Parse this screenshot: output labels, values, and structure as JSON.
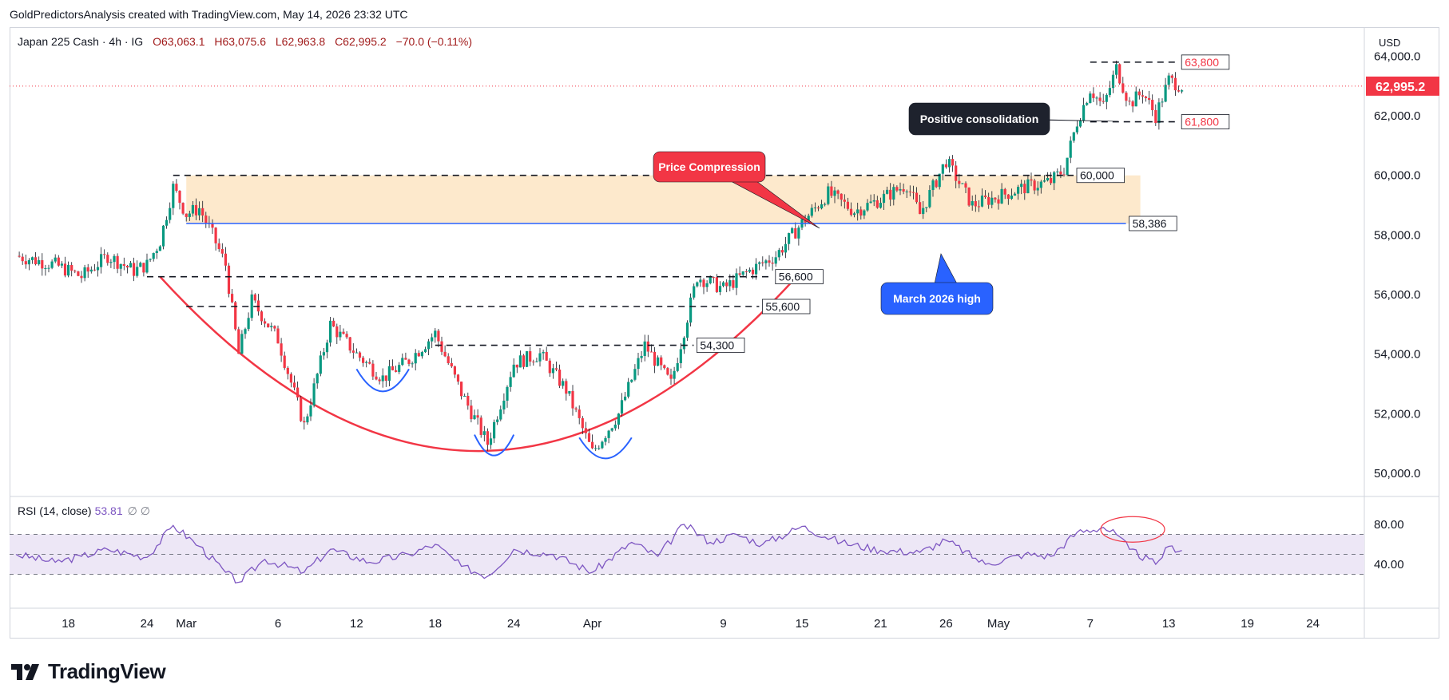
{
  "header": {
    "caption": "GoldPredictorsAnalysis created with TradingView.com, May 14, 2026 23:32 UTC"
  },
  "legend": {
    "symbol": "Japan 225 Cash · 4h · IG",
    "open": "O63,063.1",
    "high": "H63,075.6",
    "low": "L62,963.8",
    "close": "C62,995.2",
    "change": "−70.0 (−0.11%)"
  },
  "price_axis": {
    "currency": "USD",
    "current_price_label": "62,995.2"
  },
  "rsi_legend": {
    "label": "RSI (14, close)",
    "value": "53.81",
    "symbols": "∅  ∅"
  },
  "brand": {
    "name": "TradingView"
  },
  "colors": {
    "up": "#089981",
    "down": "#f23645",
    "zone": "#fde9cc",
    "support_line": "#2962ff",
    "cup_curve": "#f23645",
    "rsi_line": "#7e57c2",
    "rsi_band": "#ede7f6",
    "price_tag": "#f23645",
    "callout_red": "#f23645",
    "callout_blue": "#2962ff",
    "callout_dark": "#1e222d"
  },
  "chart_data": {
    "type": "candlestick",
    "title": "Japan 225 Cash · 4h · IG",
    "price_axis": {
      "ticks": [
        50000,
        52000,
        54000,
        56000,
        58000,
        60000,
        62000,
        64000
      ],
      "labels": [
        "50,000.0",
        "52,000.0",
        "54,000.0",
        "56,000.0",
        "58,000.0",
        "60,000.0",
        "62,000.0",
        "64,000.0"
      ],
      "range": [
        49600,
        64600
      ]
    },
    "time_axis": {
      "labels": [
        "18",
        "24",
        "Mar",
        "6",
        "12",
        "18",
        "24",
        "Apr",
        "9",
        "15",
        "21",
        "26",
        "May",
        "7",
        "13",
        "19",
        "24"
      ]
    },
    "price_path": [
      {
        "t": "Feb 14",
        "close": 57300
      },
      {
        "t": "Feb 17",
        "close": 57000
      },
      {
        "t": "Feb 19",
        "close": 56600
      },
      {
        "t": "Feb 21",
        "close": 57300
      },
      {
        "t": "Feb 23",
        "close": 56800
      },
      {
        "t": "Feb 24",
        "close": 57000
      },
      {
        "t": "Feb 25",
        "close": 57800
      },
      {
        "t": "Feb 26",
        "close": 59600
      },
      {
        "t": "Feb 27",
        "close": 58700
      },
      {
        "t": "Feb 28",
        "close": 58900
      },
      {
        "t": "Mar 1",
        "close": 58000
      },
      {
        "t": "Mar 2",
        "close": 57000
      },
      {
        "t": "Mar 3",
        "close": 54000
      },
      {
        "t": "Mar 4",
        "close": 55800
      },
      {
        "t": "Mar 6",
        "close": 54500
      },
      {
        "t": "Mar 8",
        "close": 51600
      },
      {
        "t": "Mar 10",
        "close": 55000
      },
      {
        "t": "Mar 12",
        "close": 54000
      },
      {
        "t": "Mar 14",
        "close": 53200
      },
      {
        "t": "Mar 16",
        "close": 53800
      },
      {
        "t": "Mar 18",
        "close": 54700
      },
      {
        "t": "Mar 20",
        "close": 52700
      },
      {
        "t": "Mar 22",
        "close": 51000
      },
      {
        "t": "Mar 24",
        "close": 53700
      },
      {
        "t": "Mar 26",
        "close": 54000
      },
      {
        "t": "Mar 28",
        "close": 52800
      },
      {
        "t": "Mar 30",
        "close": 50700
      },
      {
        "t": "Apr 1",
        "close": 52000
      },
      {
        "t": "Apr 3",
        "close": 54300
      },
      {
        "t": "Apr 5",
        "close": 53000
      },
      {
        "t": "Apr 7",
        "close": 56600
      },
      {
        "t": "Apr 9",
        "close": 56200
      },
      {
        "t": "Apr 11",
        "close": 56800
      },
      {
        "t": "Apr 13",
        "close": 57300
      },
      {
        "t": "Apr 15",
        "close": 58400
      },
      {
        "t": "Apr 17",
        "close": 59400
      },
      {
        "t": "Apr 19",
        "close": 58800
      },
      {
        "t": "Apr 21",
        "close": 59200
      },
      {
        "t": "Apr 23",
        "close": 59700
      },
      {
        "t": "Apr 24",
        "close": 58700
      },
      {
        "t": "Apr 26",
        "close": 60500
      },
      {
        "t": "Apr 28",
        "close": 59000
      },
      {
        "t": "Apr 30",
        "close": 59300
      },
      {
        "t": "May 2",
        "close": 59600
      },
      {
        "t": "May 4",
        "close": 59800
      },
      {
        "t": "May 5",
        "close": 60200
      },
      {
        "t": "May 6",
        "close": 61800
      },
      {
        "t": "May 7",
        "close": 62900
      },
      {
        "t": "May 8",
        "close": 62300
      },
      {
        "t": "May 9",
        "close": 63600
      },
      {
        "t": "May 10",
        "close": 62400
      },
      {
        "t": "May 11",
        "close": 62800
      },
      {
        "t": "May 12",
        "close": 62000
      },
      {
        "t": "May 13",
        "close": 63200
      },
      {
        "t": "May 14",
        "close": 62995
      }
    ],
    "levels": [
      {
        "price": 63800,
        "label": "63,800",
        "style": "dashed"
      },
      {
        "price": 61800,
        "label": "61,800",
        "style": "dashed"
      },
      {
        "price": 60000,
        "label": "60,000",
        "style": "dashed"
      },
      {
        "price": 58386,
        "label": "58,386",
        "style": "solid-blue"
      },
      {
        "price": 56600,
        "label": "56,600",
        "style": "dashed"
      },
      {
        "price": 55600,
        "label": "55,600",
        "style": "dashed"
      },
      {
        "price": 54300,
        "label": "54,300",
        "style": "dashed"
      }
    ],
    "annotations": [
      "Price Compression",
      "March 2026 high",
      "Positive consolidation"
    ],
    "rsi": {
      "label": "RSI (14, close)",
      "last": 53.81,
      "axis_labels": [
        "80.00",
        "40.00"
      ],
      "band": [
        30,
        70
      ],
      "path": [
        {
          "t": "Feb 14",
          "v": 50
        },
        {
          "t": "Feb 17",
          "v": 42
        },
        {
          "t": "Feb 19",
          "v": 48
        },
        {
          "t": "Feb 21",
          "v": 55
        },
        {
          "t": "Feb 24",
          "v": 47
        },
        {
          "t": "Feb 26",
          "v": 79
        },
        {
          "t": "Feb 28",
          "v": 58
        },
        {
          "t": "Mar 2",
          "v": 32
        },
        {
          "t": "Mar 3",
          "v": 22
        },
        {
          "t": "Mar 5",
          "v": 45
        },
        {
          "t": "Mar 8",
          "v": 32
        },
        {
          "t": "Mar 10",
          "v": 55
        },
        {
          "t": "Mar 13",
          "v": 42
        },
        {
          "t": "Mar 16",
          "v": 50
        },
        {
          "t": "Mar 18",
          "v": 60
        },
        {
          "t": "Mar 20",
          "v": 38
        },
        {
          "t": "Mar 22",
          "v": 28
        },
        {
          "t": "Mar 24",
          "v": 55
        },
        {
          "t": "Mar 27",
          "v": 50
        },
        {
          "t": "Mar 30",
          "v": 32
        },
        {
          "t": "Apr 2",
          "v": 62
        },
        {
          "t": "Apr 4",
          "v": 48
        },
        {
          "t": "Apr 6",
          "v": 80
        },
        {
          "t": "Apr 8",
          "v": 62
        },
        {
          "t": "Apr 10",
          "v": 70
        },
        {
          "t": "Apr 12",
          "v": 60
        },
        {
          "t": "Apr 15",
          "v": 78
        },
        {
          "t": "Apr 18",
          "v": 62
        },
        {
          "t": "Apr 21",
          "v": 54
        },
        {
          "t": "Apr 24",
          "v": 52
        },
        {
          "t": "Apr 26",
          "v": 64
        },
        {
          "t": "Apr 29",
          "v": 40
        },
        {
          "t": "May 2",
          "v": 50
        },
        {
          "t": "May 4",
          "v": 48
        },
        {
          "t": "May 6",
          "v": 72
        },
        {
          "t": "May 8",
          "v": 77
        },
        {
          "t": "May 9",
          "v": 70
        },
        {
          "t": "May 10",
          "v": 55
        },
        {
          "t": "May 12",
          "v": 40
        },
        {
          "t": "May 13",
          "v": 58
        },
        {
          "t": "May 14",
          "v": 53.81
        }
      ]
    }
  }
}
